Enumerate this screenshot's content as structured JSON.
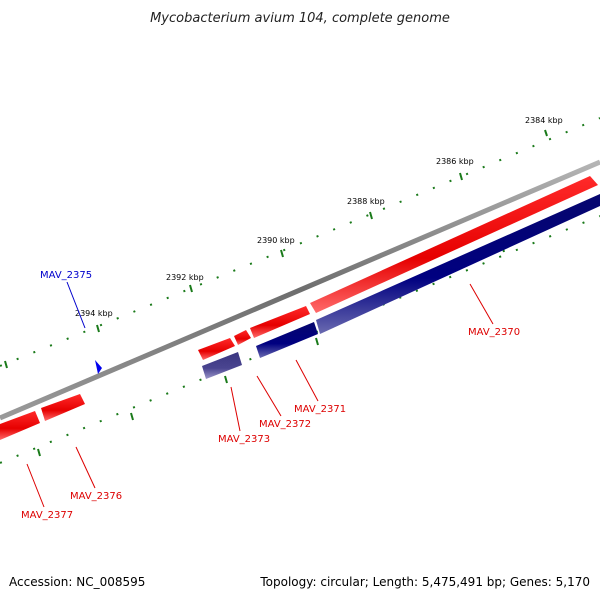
{
  "title": "Mycobacterium avium 104, complete genome",
  "footer": {
    "accession": "Accession: NC_008595",
    "summary": "Topology: circular; Length: 5,475,491 bp; Genes: 5,170"
  },
  "scale": {
    "labels": [
      "2384 kbp",
      "2386 kbp",
      "2388 kbp",
      "2390 kbp",
      "2392 kbp",
      "2394 kbp"
    ]
  },
  "genes": [
    {
      "name": "MAV_2370",
      "color": "#e00000",
      "strand": "forward"
    },
    {
      "name": "MAV_2371",
      "color": "#e00000",
      "strand": "forward"
    },
    {
      "name": "MAV_2372",
      "color": "#e00000",
      "strand": "forward"
    },
    {
      "name": "MAV_2373",
      "color": "#e00000",
      "strand": "forward"
    },
    {
      "name": "MAV_2375",
      "color": "#0000cc",
      "strand": "reverse"
    },
    {
      "name": "MAV_2376",
      "color": "#e00000",
      "strand": "forward"
    },
    {
      "name": "MAV_2377",
      "color": "#e00000",
      "strand": "forward"
    }
  ],
  "colors": {
    "forward_gene": "#ee0000",
    "reverse_gene": "#000080",
    "reverse_gene_light": "#4a4590",
    "backbone": "#7f7f7f",
    "tick": "#1a7a1a",
    "label_red": "#dd0000",
    "label_blue": "#0000cc"
  }
}
